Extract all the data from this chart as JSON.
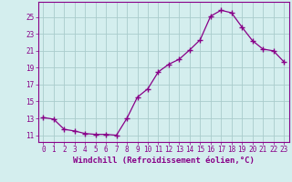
{
  "x": [
    0,
    1,
    2,
    3,
    4,
    5,
    6,
    7,
    8,
    9,
    10,
    11,
    12,
    13,
    14,
    15,
    16,
    17,
    18,
    19,
    20,
    21,
    22,
    23
  ],
  "y": [
    13.1,
    12.9,
    11.7,
    11.5,
    11.2,
    11.1,
    11.1,
    11.0,
    13.0,
    15.5,
    16.5,
    18.5,
    19.4,
    20.0,
    21.1,
    22.3,
    25.1,
    25.8,
    25.5,
    23.8,
    22.2,
    21.2,
    21.0,
    19.7
  ],
  "line_color": "#880088",
  "marker": "+",
  "marker_size": 4,
  "background_color": "#d4eeee",
  "grid_color": "#aacccc",
  "xlabel": "Windchill (Refroidissement éolien,°C)",
  "xlabel_fontsize": 6.5,
  "tick_fontsize": 5.5,
  "yticks": [
    11,
    13,
    15,
    17,
    19,
    21,
    23,
    25
  ],
  "ylim": [
    10.2,
    26.8
  ],
  "xlim": [
    -0.5,
    23.5
  ]
}
